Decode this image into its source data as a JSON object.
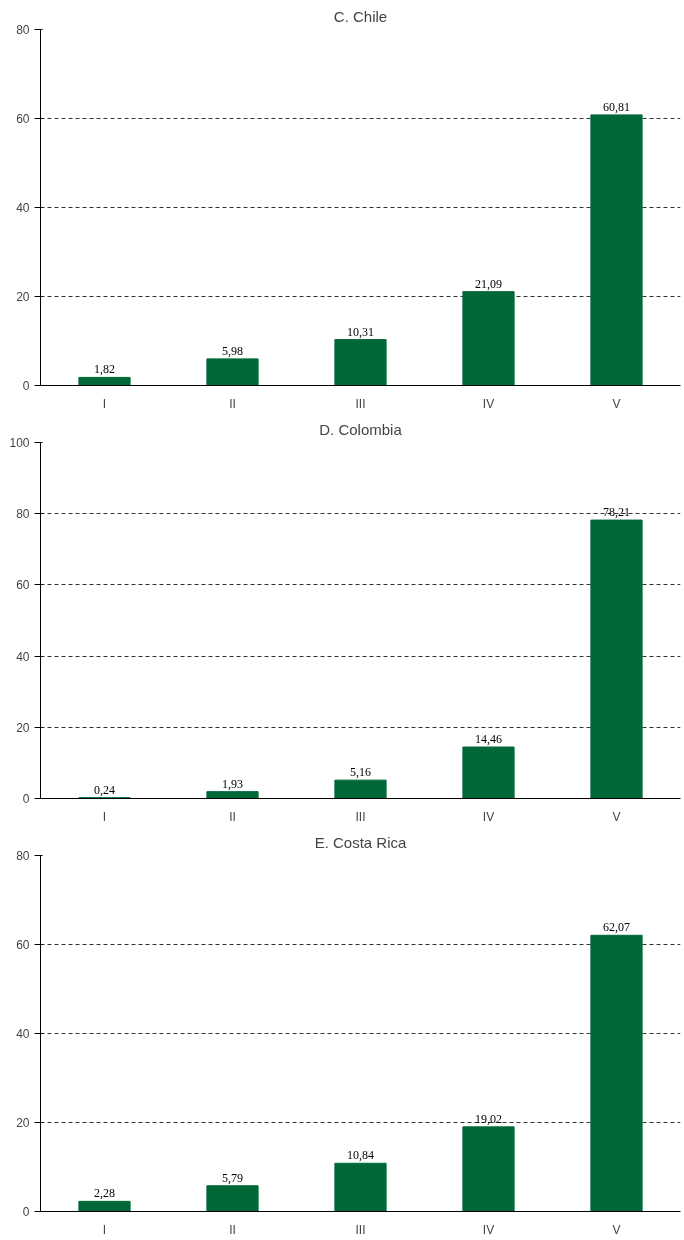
{
  "chart_data": [
    {
      "type": "bar",
      "title": "C. Chile",
      "categories": [
        "I",
        "II",
        "III",
        "IV",
        "V"
      ],
      "values": [
        1.82,
        5.98,
        10.31,
        21.09,
        60.81
      ],
      "value_labels": [
        "1,82",
        "5,98",
        "10,31",
        "21,09",
        "60,81"
      ],
      "color": "#006837",
      "ylim": [
        0,
        80
      ],
      "yticks": [
        0,
        20,
        40,
        60,
        80
      ],
      "grid": "y"
    },
    {
      "type": "bar",
      "title": "D. Colombia",
      "categories": [
        "I",
        "II",
        "III",
        "IV",
        "V"
      ],
      "values": [
        0.24,
        1.93,
        5.16,
        14.46,
        78.21
      ],
      "value_labels": [
        "0,24",
        "1,93",
        "5,16",
        "14,46",
        "78,21"
      ],
      "color": "#006837",
      "ylim": [
        0,
        100
      ],
      "yticks": [
        0,
        20,
        40,
        60,
        80,
        100
      ],
      "grid": "y"
    },
    {
      "type": "bar",
      "title": "E. Costa Rica",
      "categories": [
        "I",
        "II",
        "III",
        "IV",
        "V"
      ],
      "values": [
        2.28,
        5.79,
        10.84,
        19.02,
        62.07
      ],
      "value_labels": [
        "2,28",
        "5,79",
        "10,84",
        "19,02",
        "62,07"
      ],
      "color": "#006837",
      "ylim": [
        0,
        80
      ],
      "yticks": [
        0,
        20,
        40,
        60,
        80
      ],
      "grid": "y"
    }
  ]
}
